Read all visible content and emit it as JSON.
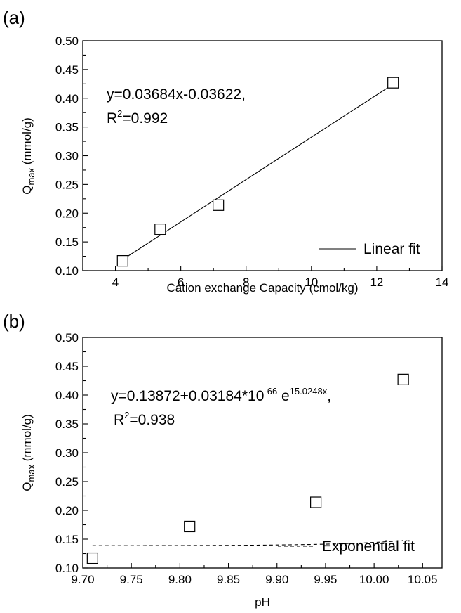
{
  "chart_data": [
    {
      "type": "scatter",
      "panel_label": "(a)",
      "xlabel": "Cation exchange Capacity (cmol/kg)",
      "ylabel": {
        "main": "Q",
        "sub": "max",
        "rest": " (mmol/g)"
      },
      "xlim": [
        3,
        14
      ],
      "ylim": [
        0.1,
        0.5
      ],
      "xticks": [
        "4",
        "6",
        "8",
        "10",
        "12",
        "14"
      ],
      "xtick_values": [
        4,
        6,
        8,
        10,
        12,
        14
      ],
      "yticks": [
        "0.10",
        "0.15",
        "0.20",
        "0.25",
        "0.30",
        "0.35",
        "0.40",
        "0.45",
        "0.50"
      ],
      "ytick_values": [
        0.1,
        0.15,
        0.2,
        0.25,
        0.3,
        0.35,
        0.4,
        0.45,
        0.5
      ],
      "x": [
        4.22,
        5.37,
        7.15,
        12.5
      ],
      "y": [
        0.117,
        0.172,
        0.214,
        0.427
      ],
      "fit": {
        "kind": "linear",
        "slope": 0.03684,
        "intercept": -0.03622,
        "x_range": [
          4.22,
          12.5
        ]
      },
      "annotation": {
        "line1": "y=0.03684x-0.03622,",
        "line2_pre": "R",
        "line2_sup": "2",
        "line2_post": "=0.992"
      },
      "legend": {
        "label": "Linear fit",
        "style": "solid",
        "position": "bottom-right"
      },
      "marker": "open-square",
      "grid": false
    },
    {
      "type": "scatter",
      "panel_label": "(b)",
      "xlabel": "pH",
      "ylabel": {
        "main": "Q",
        "sub": "max",
        "rest": " (mmol/g)"
      },
      "xlim": [
        9.7,
        10.07
      ],
      "ylim": [
        0.1,
        0.5
      ],
      "xticks": [
        "9.70",
        "9.75",
        "9.80",
        "9.85",
        "9.90",
        "9.95",
        "10.00",
        "10.05"
      ],
      "xtick_values": [
        9.7,
        9.75,
        9.8,
        9.85,
        9.9,
        9.95,
        10.0,
        10.05
      ],
      "yticks": [
        "0.10",
        "0.15",
        "0.20",
        "0.25",
        "0.30",
        "0.35",
        "0.40",
        "0.45",
        "0.50"
      ],
      "ytick_values": [
        0.1,
        0.15,
        0.2,
        0.25,
        0.3,
        0.35,
        0.4,
        0.45,
        0.5
      ],
      "x": [
        9.71,
        9.81,
        9.94,
        10.03
      ],
      "y": [
        0.117,
        0.172,
        0.214,
        0.427
      ],
      "fit": {
        "kind": "exponential",
        "y0": 0.13872,
        "A": 3.184e-68,
        "k": 15.0248,
        "x_range": [
          9.71,
          10.03
        ]
      },
      "annotation": {
        "line1_pre": "y=0.13872+0.03184*10",
        "line1_sup1": "-66",
        "line1_mid": " e",
        "line1_sup2": "15.0248x",
        "line1_post": ",",
        "line2_pre": "R",
        "line2_sup": "2",
        "line2_post": "=0.938"
      },
      "legend": {
        "label": "Exponential fit",
        "style": "dashed",
        "position": "bottom-right"
      },
      "marker": "open-square",
      "grid": false
    }
  ]
}
